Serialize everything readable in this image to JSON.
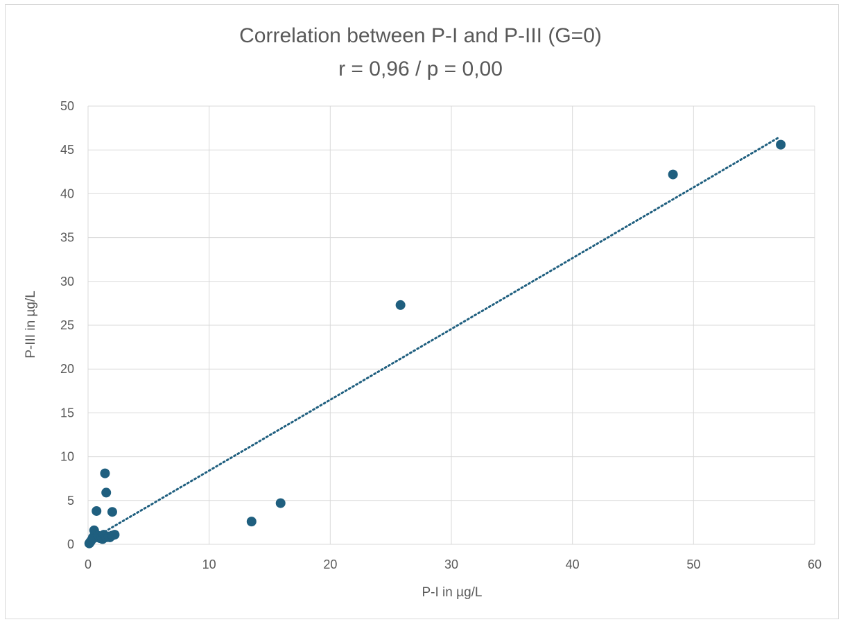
{
  "chart_data": {
    "type": "scatter",
    "title": "Correlation between P-I and P-III (G=0)",
    "subtitle": "r = 0,96 / p = 0,00",
    "xlabel": "P-I in µg/L",
    "ylabel": "P-III in µg/L",
    "xlim": [
      0,
      60
    ],
    "ylim": [
      0,
      50
    ],
    "xticks": [
      0,
      10,
      20,
      30,
      40,
      50,
      60
    ],
    "yticks": [
      0,
      5,
      10,
      15,
      20,
      25,
      30,
      35,
      40,
      45,
      50
    ],
    "grid": true,
    "legend": "none",
    "marker_color": "#1f5f7f",
    "trendline": {
      "style": "dotted",
      "color": "#1f5f7f",
      "x_start": 0.2,
      "x_end": 57
    },
    "series": [
      {
        "x": [
          0.1,
          0.15,
          0.2,
          0.3,
          0.4,
          0.5,
          0.6,
          0.7,
          0.8,
          0.9,
          1.0,
          1.1,
          1.2,
          1.3,
          1.4,
          1.5,
          1.7,
          1.8,
          2.0,
          2.2,
          0.7,
          1.4,
          1.5,
          2.0,
          13.5,
          15.9,
          25.8,
          48.3,
          57.2
        ],
        "y": [
          0.1,
          0.2,
          0.3,
          0.5,
          0.8,
          1.6,
          1.2,
          0.8,
          1.0,
          0.9,
          0.7,
          0.8,
          0.6,
          1.1,
          0.9,
          0.8,
          0.9,
          0.8,
          1.0,
          1.1,
          3.8,
          8.1,
          5.9,
          3.7,
          2.6,
          4.7,
          27.3,
          42.2,
          45.6
        ]
      }
    ]
  }
}
